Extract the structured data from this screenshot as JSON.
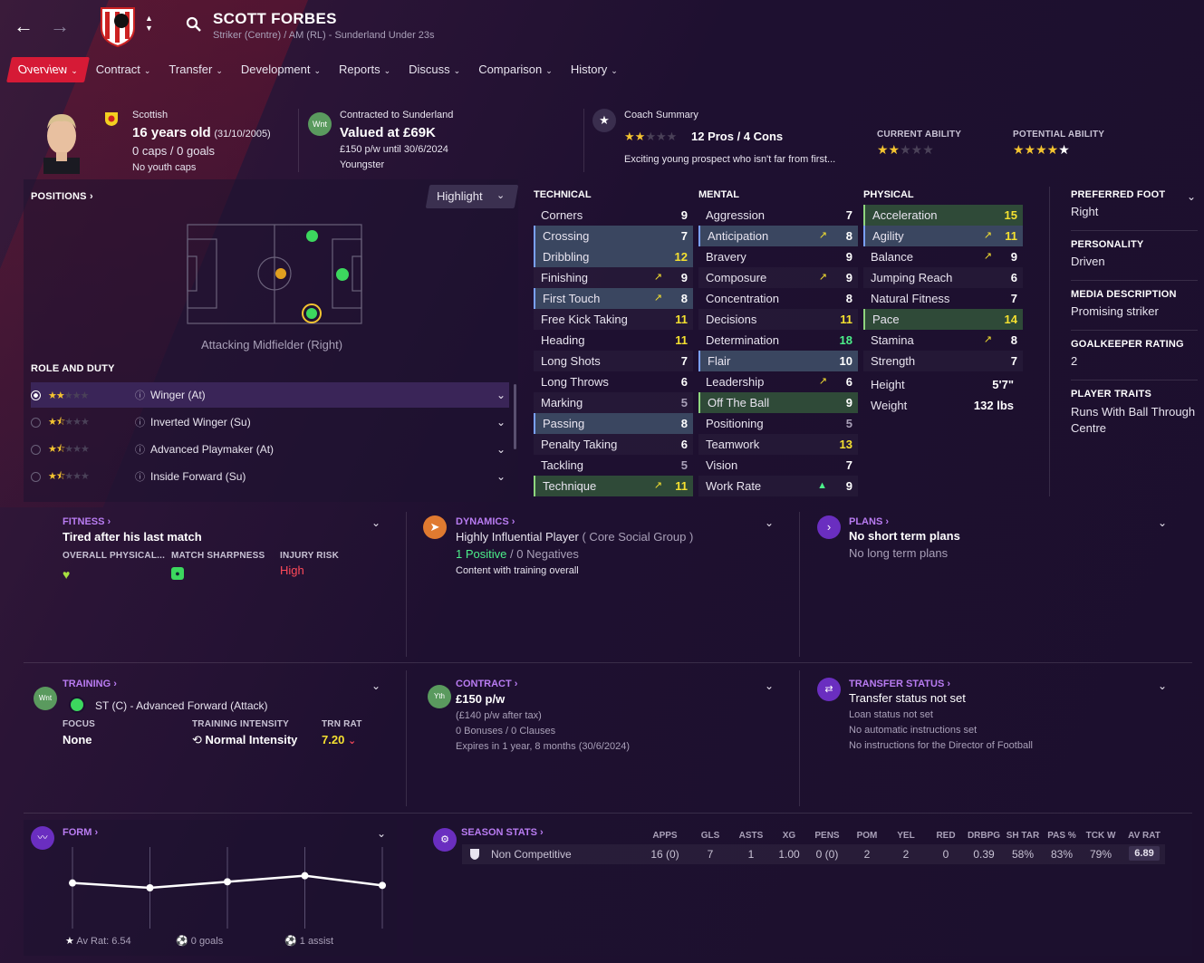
{
  "header": {
    "back_icon": "arrow-left-icon",
    "forward_icon": "arrow-right-icon",
    "player_name": "SCOTT FORBES",
    "player_subtitle": "Striker (Centre) / AM (RL) - Sunderland Under 23s"
  },
  "tabs": [
    {
      "label": "Overview",
      "active": true
    },
    {
      "label": "Contract"
    },
    {
      "label": "Transfer"
    },
    {
      "label": "Development"
    },
    {
      "label": "Reports"
    },
    {
      "label": "Discuss"
    },
    {
      "label": "Comparison"
    },
    {
      "label": "History"
    }
  ],
  "profile": {
    "nationality": "Scottish",
    "age": "16 years old",
    "dob": "(31/10/2005)",
    "caps": "0 caps / 0 goals",
    "youth_caps": "No youth caps",
    "contracted_to": "Contracted to Sunderland",
    "valued": "Valued at £69K",
    "wage": "£150 p/w until 30/6/2024",
    "status": "Youngster",
    "badge": "Wnt"
  },
  "coach": {
    "label": "Coach Summary",
    "pros_cons": "12 Pros / 4 Cons",
    "rating_stars": 2,
    "summary": "Exciting young prospect who isn't far from first...",
    "current_ability_label": "CURRENT ABILITY",
    "current_ability_stars": 2,
    "potential_ability_label": "POTENTIAL ABILITY",
    "potential_ability_stars": 5
  },
  "positions": {
    "label": "POSITIONS",
    "highlight": "Highlight",
    "position_name": "Attacking Midfielder (Right)",
    "role_label": "ROLE AND DUTY",
    "roles": [
      {
        "name": "Winger (At)",
        "stars": 2,
        "selected": true
      },
      {
        "name": "Inverted Winger (Su)",
        "stars": 1.5
      },
      {
        "name": "Advanced Playmaker (At)",
        "stars": 1.5
      },
      {
        "name": "Inside Forward (Su)",
        "stars": 1.5
      }
    ]
  },
  "technical": {
    "label": "TECHNICAL",
    "rows": [
      {
        "n": "Corners",
        "v": "9",
        "c": "w"
      },
      {
        "n": "Crossing",
        "v": "7",
        "c": "w",
        "hl": "b"
      },
      {
        "n": "Dribbling",
        "v": "12",
        "c": "y",
        "hl": "b"
      },
      {
        "n": "Finishing",
        "v": "9",
        "c": "w",
        "ar": "↗"
      },
      {
        "n": "First Touch",
        "v": "8",
        "c": "w",
        "hl": "b",
        "ar": "↗"
      },
      {
        "n": "Free Kick Taking",
        "v": "11",
        "c": "y"
      },
      {
        "n": "Heading",
        "v": "11",
        "c": "y"
      },
      {
        "n": "Long Shots",
        "v": "7",
        "c": "w"
      },
      {
        "n": "Long Throws",
        "v": "6",
        "c": "w"
      },
      {
        "n": "Marking",
        "v": "5",
        "c": "gr"
      },
      {
        "n": "Passing",
        "v": "8",
        "c": "w",
        "hl": "b"
      },
      {
        "n": "Penalty Taking",
        "v": "6",
        "c": "w"
      },
      {
        "n": "Tackling",
        "v": "5",
        "c": "gr"
      },
      {
        "n": "Technique",
        "v": "11",
        "c": "y",
        "hl": "g",
        "ar": "↗"
      }
    ]
  },
  "mental": {
    "label": "MENTAL",
    "rows": [
      {
        "n": "Aggression",
        "v": "7",
        "c": "w"
      },
      {
        "n": "Anticipation",
        "v": "8",
        "c": "w",
        "hl": "b",
        "ar": "↗"
      },
      {
        "n": "Bravery",
        "v": "9",
        "c": "w"
      },
      {
        "n": "Composure",
        "v": "9",
        "c": "w",
        "ar": "↗"
      },
      {
        "n": "Concentration",
        "v": "8",
        "c": "w"
      },
      {
        "n": "Decisions",
        "v": "11",
        "c": "y"
      },
      {
        "n": "Determination",
        "v": "18",
        "c": "g"
      },
      {
        "n": "Flair",
        "v": "10",
        "c": "w",
        "hl": "b"
      },
      {
        "n": "Leadership",
        "v": "6",
        "c": "w",
        "ar": "↗"
      },
      {
        "n": "Off The Ball",
        "v": "9",
        "c": "w",
        "hl": "g"
      },
      {
        "n": "Positioning",
        "v": "5",
        "c": "gr"
      },
      {
        "n": "Teamwork",
        "v": "13",
        "c": "y"
      },
      {
        "n": "Vision",
        "v": "7",
        "c": "w"
      },
      {
        "n": "Work Rate",
        "v": "9",
        "c": "w",
        "ar": "▲",
        "arc": "g"
      }
    ]
  },
  "physical": {
    "label": "PHYSICAL",
    "rows": [
      {
        "n": "Acceleration",
        "v": "15",
        "c": "y",
        "hl": "g"
      },
      {
        "n": "Agility",
        "v": "11",
        "c": "y",
        "hl": "b",
        "ar": "↗"
      },
      {
        "n": "Balance",
        "v": "9",
        "c": "w",
        "ar": "↗"
      },
      {
        "n": "Jumping Reach",
        "v": "6",
        "c": "w"
      },
      {
        "n": "Natural Fitness",
        "v": "7",
        "c": "w"
      },
      {
        "n": "Pace",
        "v": "14",
        "c": "y",
        "hl": "g"
      },
      {
        "n": "Stamina",
        "v": "8",
        "c": "w",
        "ar": "↗"
      },
      {
        "n": "Strength",
        "v": "7",
        "c": "w"
      }
    ],
    "height_label": "Height",
    "height": "5'7\"",
    "weight_label": "Weight",
    "weight": "132 lbs"
  },
  "side_info": [
    {
      "label": "PREFERRED FOOT",
      "value": "Right"
    },
    {
      "label": "PERSONALITY",
      "value": "Driven"
    },
    {
      "label": "MEDIA DESCRIPTION",
      "value": "Promising striker"
    },
    {
      "label": "GOALKEEPER RATING",
      "value": "2"
    },
    {
      "label": "PLAYER TRAITS",
      "value": "Runs With Ball Through Centre"
    }
  ],
  "fitness": {
    "label": "FITNESS",
    "status": "Tired after his last match",
    "overall_label": "OVERALL PHYSICAL...",
    "sharpness_label": "MATCH SHARPNESS",
    "injury_label": "INJURY RISK",
    "injury_value": "High"
  },
  "dynamics": {
    "label": "DYNAMICS",
    "influence": "Highly Influential Player",
    "group": "( Core Social Group )",
    "positive": "1 Positive",
    "sep": "/",
    "negative": "0 Negatives",
    "training": "Content with training overall"
  },
  "plans": {
    "label": "PLANS",
    "short": "No short term plans",
    "long": "No long term plans"
  },
  "training": {
    "label": "TRAINING",
    "badge": "Wnt",
    "role": "ST (C) - Advanced Forward (Attack)",
    "focus_label": "FOCUS",
    "focus": "None",
    "intensity_label": "TRAINING INTENSITY",
    "intensity": "Normal Intensity",
    "trn_label": "TRN RAT",
    "trn": "7.20"
  },
  "contract": {
    "label": "CONTRACT",
    "badge": "Yth",
    "wage": "£150 p/w",
    "after_tax": "(£140 p/w after tax)",
    "bonuses": "0 Bonuses / 0 Clauses",
    "expires": "Expires in 1 year, 8 months  (30/6/2024)"
  },
  "transfer": {
    "label": "TRANSFER STATUS",
    "status": "Transfer status not set",
    "loan": "Loan status not set",
    "auto": "No automatic instructions set",
    "dof": "No instructions for the Director of Football"
  },
  "form": {
    "label": "FORM",
    "av_rat": "Av Rat: 6.54",
    "goals": "0 goals",
    "assists": "1 assist"
  },
  "chart_data": {
    "type": "line",
    "x": [
      1,
      2,
      3,
      4,
      5
    ],
    "y": [
      6.7,
      6.5,
      6.75,
      7.0,
      6.6
    ],
    "ylim": [
      5,
      8
    ],
    "grid": false
  },
  "season_stats": {
    "label": "SEASON STATS",
    "headers": [
      "APPS",
      "GLS",
      "ASTS",
      "XG",
      "PENS",
      "POM",
      "YEL",
      "RED",
      "DRBPG",
      "SH TAR",
      "PAS %",
      "TCK W",
      "AV RAT"
    ],
    "competition": "Non Competitive",
    "values": [
      "16 (0)",
      "7",
      "1",
      "1.00",
      "0 (0)",
      "2",
      "2",
      "0",
      "0.39",
      "58%",
      "83%",
      "79%",
      "6.89"
    ]
  },
  "colors": {
    "accent": "#d61a36",
    "purple": "#b97cf2",
    "yellow": "#f4e030",
    "green": "#4cf08a",
    "red": "#ff4a5a"
  }
}
